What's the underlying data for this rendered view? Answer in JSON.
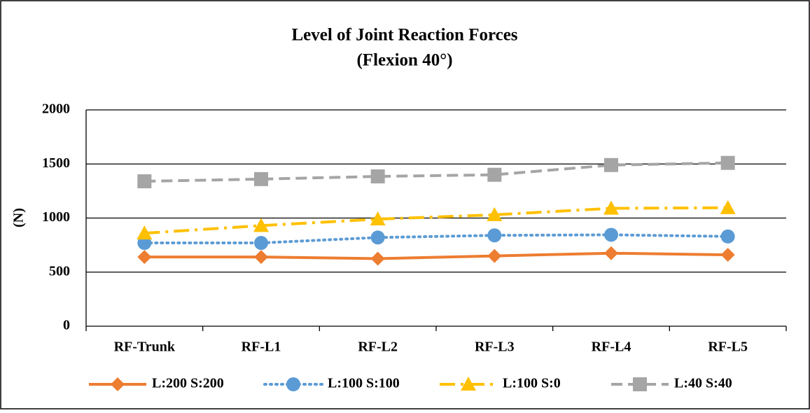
{
  "chart_data": {
    "type": "line",
    "title": "Level of Joint Reaction Forces",
    "subtitle": "(Flexion 40°)",
    "y_label": "(N)",
    "categories": [
      "RF-Trunk",
      "RF-L1",
      "RF-L2",
      "RF-L3",
      "RF-L4",
      "RF-L5"
    ],
    "series": [
      {
        "name": "L:200 S:200",
        "color": "#ed7d31",
        "marker": "diamond",
        "dash": "solid",
        "values": [
          640,
          640,
          625,
          650,
          675,
          660
        ]
      },
      {
        "name": "L:100 S:100",
        "color": "#5b9bd5",
        "marker": "circle",
        "dash": "dotted",
        "values": [
          770,
          770,
          820,
          840,
          845,
          830
        ]
      },
      {
        "name": "L:100 S:0",
        "color": "#ffc000",
        "marker": "triangle",
        "dash": "dashdot",
        "values": [
          860,
          930,
          990,
          1030,
          1090,
          1095
        ]
      },
      {
        "name": "L:40 S:40",
        "color": "#a5a5a5",
        "marker": "square",
        "dash": "dashed",
        "values": [
          1340,
          1360,
          1385,
          1400,
          1490,
          1510
        ]
      }
    ],
    "ylim": [
      0,
      2000
    ],
    "yticks": [
      0,
      500,
      1000,
      1500,
      2000
    ],
    "grid": true,
    "legend": "bottom"
  }
}
